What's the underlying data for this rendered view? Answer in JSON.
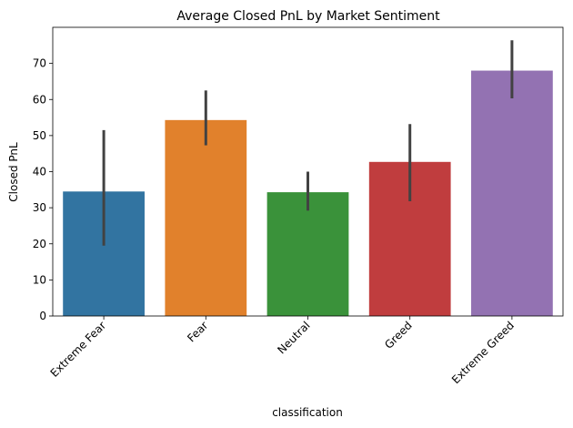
{
  "chart_data": {
    "type": "bar",
    "title": "Average Closed PnL by Market Sentiment",
    "xlabel": "classification",
    "ylabel": "Closed PnL",
    "categories": [
      "Extreme Fear",
      "Fear",
      "Neutral",
      "Greed",
      "Extreme Greed"
    ],
    "values": [
      34.5,
      54.3,
      34.3,
      42.7,
      68.0
    ],
    "error_low": [
      19.5,
      47.3,
      29.2,
      31.8,
      60.3
    ],
    "error_high": [
      51.5,
      62.5,
      40.0,
      53.2,
      76.4
    ],
    "colors": [
      "#3274a1",
      "#e1812c",
      "#3a923a",
      "#c03d3e",
      "#9372b2"
    ],
    "error_color": "#424242",
    "ylim": [
      0,
      80
    ],
    "yticks": [
      0,
      10,
      20,
      30,
      40,
      50,
      60,
      70
    ],
    "grid": false,
    "legend": "none"
  }
}
